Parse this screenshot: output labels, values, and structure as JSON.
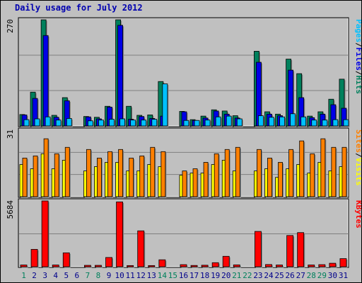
{
  "colors": {
    "background": "#c0c0c0",
    "panel": "#c0c0c0",
    "grid": "#7f7f7f",
    "hits": "#00805c",
    "files": "#0000e6",
    "pages": "#00c0ff",
    "visits": "#ffff00",
    "sites": "#ff8000",
    "kbytes": "#ff0000",
    "title": "#0000b0",
    "weekend_label": "#00805c",
    "weekday_label": "#00008b"
  },
  "chart_data": {
    "type": "bar",
    "title": "Daily usage for July 2012",
    "x": [
      "1",
      "2",
      "3",
      "4",
      "5",
      "6",
      "7",
      "8",
      "9",
      "10",
      "11",
      "12",
      "13",
      "14",
      "15",
      "16",
      "17",
      "18",
      "19",
      "20",
      "21",
      "22",
      "23",
      "24",
      "25",
      "26",
      "27",
      "28",
      "29",
      "30",
      "31"
    ],
    "weekend_days": [
      "1",
      "7",
      "8",
      "14",
      "15",
      "21",
      "22",
      "28",
      "29"
    ],
    "panels": [
      {
        "id": "top",
        "ymax_label": "270",
        "ylim": [
          0,
          270
        ],
        "legend": [
          {
            "text": "Pages",
            "color": "#00c0ff"
          },
          {
            "text": "Files",
            "color": "#0000e6"
          },
          {
            "text": "Hits",
            "color": "#00805c"
          }
        ],
        "series": [
          {
            "name": "Hits",
            "color": "#00805c",
            "values": [
              29,
              86,
              270,
              27,
              72,
              0,
              24,
              22,
              50,
              270,
              50,
              27,
              28,
              113,
              0,
              37,
              16,
              25,
              41,
              38,
              26,
              0,
              190,
              36,
              30,
              170,
              133,
              25,
              36,
              68,
              119
            ]
          },
          {
            "name": "Files",
            "color": "#0000e6",
            "values": [
              28,
              70,
              230,
              22,
              64,
              0,
              23,
              18,
              48,
              256,
              17,
              24,
              19,
              25,
              0,
              36,
              14,
              20,
              38,
              30,
              20,
              0,
              162,
              30,
              26,
              142,
              72,
              21,
              30,
              54,
              45
            ]
          },
          {
            "name": "Pages",
            "color": "#00c0ff",
            "values": [
              16,
              18,
              23,
              15,
              19,
              0,
              13,
              15,
              17,
              18,
              15,
              15,
              17,
              107,
              0,
              14,
              14,
              15,
              23,
              25,
              18,
              0,
              26,
              22,
              23,
              31,
              23,
              15,
              15,
              16,
              16
            ]
          }
        ]
      },
      {
        "id": "mid",
        "ymax_label": "31",
        "ylim": [
          0,
          31
        ],
        "legend": [
          {
            "text": "Sites",
            "color": "#ff8000"
          },
          {
            "text": "/",
            "color": "#000000"
          },
          {
            "text": "Visits",
            "color": "#ffff00"
          }
        ],
        "series": [
          {
            "name": "Visits",
            "color": "#ffff00",
            "values": [
              15,
              13,
              20,
              13,
              17,
              0,
              12,
              14,
              16,
              16,
              12,
              12,
              15,
              14,
              0,
              10,
              11,
              11,
              15,
              17,
              12,
              0,
              12,
              13,
              9,
              13,
              15,
              11,
              16,
              12,
              14
            ]
          },
          {
            "name": "Sites",
            "color": "#ff8000",
            "values": [
              18,
              19,
              27,
              20,
              23,
              0,
              22,
              18,
              21,
              22,
              18,
              19,
              23,
              21,
              0,
              12,
              13,
              16,
              20,
              22,
              23,
              0,
              22,
              18,
              16,
              22,
              26,
              20,
              27,
              23,
              23
            ]
          }
        ]
      },
      {
        "id": "bottom",
        "ymax_label": "5684",
        "ylim": [
          0,
          5684
        ],
        "legend": [
          {
            "text": "KBytes",
            "color": "#ff0000"
          }
        ],
        "series": [
          {
            "name": "KBytes",
            "color": "#ff0000",
            "values": [
              150,
              1500,
              5684,
              150,
              1200,
              0,
              120,
              120,
              800,
              5600,
              100,
              3100,
              100,
              600,
              0,
              180,
              110,
              130,
              350,
              900,
              160,
              0,
              3050,
              190,
              150,
              2700,
              2950,
              150,
              180,
              300,
              700
            ]
          }
        ]
      }
    ]
  }
}
